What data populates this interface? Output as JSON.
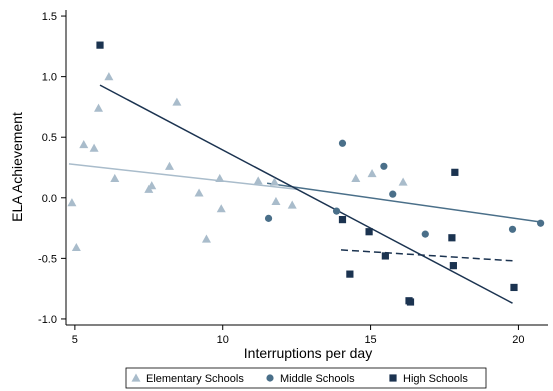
{
  "chart_data": {
    "type": "scatter",
    "title": "",
    "xlabel": "Interruptions per day",
    "ylabel": "ELA Achievement",
    "xlim": [
      4.7,
      21
    ],
    "ylim": [
      -1.05,
      1.55
    ],
    "xticks": [
      5,
      10,
      15,
      20
    ],
    "yticks": [
      -1.0,
      -0.5,
      0.0,
      0.5,
      1.0,
      1.5
    ],
    "xtick_labels": [
      "5",
      "10",
      "15",
      "20"
    ],
    "ytick_labels": [
      "-1.0",
      "-0.5",
      "0.0",
      "0.5",
      "1.0",
      "1.5"
    ],
    "grid": false,
    "legend_position": "bottom",
    "series": [
      {
        "name": "Elementary Schools",
        "marker": "triangle",
        "color": "#a9bccb",
        "points": [
          [
            4.9,
            -0.04
          ],
          [
            5.05,
            -0.41
          ],
          [
            5.3,
            0.44
          ],
          [
            5.65,
            0.41
          ],
          [
            5.8,
            0.74
          ],
          [
            6.15,
            1.0
          ],
          [
            6.35,
            0.16
          ],
          [
            7.5,
            0.07
          ],
          [
            7.6,
            0.1
          ],
          [
            8.2,
            0.26
          ],
          [
            8.45,
            0.79
          ],
          [
            9.2,
            0.04
          ],
          [
            9.45,
            -0.34
          ],
          [
            9.9,
            0.16
          ],
          [
            9.95,
            -0.09
          ],
          [
            11.2,
            0.14
          ],
          [
            11.75,
            0.13
          ],
          [
            11.8,
            -0.03
          ],
          [
            12.35,
            -0.06
          ],
          [
            14.5,
            0.16
          ],
          [
            15.05,
            0.2
          ],
          [
            16.1,
            0.13
          ]
        ],
        "fit_line": {
          "x": [
            4.8,
            12.5
          ],
          "y": [
            0.28,
            0.07
          ],
          "style": "solid"
        }
      },
      {
        "name": "Middle Schools",
        "marker": "circle",
        "color": "#4a6f89",
        "points": [
          [
            11.55,
            -0.17
          ],
          [
            13.85,
            -0.11
          ],
          [
            14.05,
            0.45
          ],
          [
            15.45,
            0.26
          ],
          [
            15.75,
            0.03
          ],
          [
            16.85,
            -0.3
          ],
          [
            19.8,
            -0.26
          ],
          [
            20.75,
            -0.21
          ]
        ],
        "fit_line": {
          "x": [
            11.5,
            20.75
          ],
          "y": [
            0.12,
            -0.2
          ],
          "style": "solid"
        }
      },
      {
        "name": "High Schools",
        "marker": "square",
        "color": "#1b3350",
        "points": [
          [
            5.85,
            1.26
          ],
          [
            14.05,
            -0.18
          ],
          [
            14.3,
            -0.63
          ],
          [
            14.95,
            -0.28
          ],
          [
            15.5,
            -0.48
          ],
          [
            16.3,
            -0.85
          ],
          [
            16.35,
            -0.86
          ],
          [
            17.75,
            -0.33
          ],
          [
            17.8,
            -0.56
          ],
          [
            17.85,
            0.21
          ],
          [
            19.85,
            -0.74
          ]
        ],
        "fit_line": {
          "x": [
            5.85,
            19.8
          ],
          "y": [
            0.93,
            -0.87
          ],
          "style": "solid"
        },
        "dashed_line": {
          "x": [
            14.0,
            19.8
          ],
          "y": [
            -0.43,
            -0.52
          ],
          "style": "dashed"
        }
      }
    ]
  }
}
